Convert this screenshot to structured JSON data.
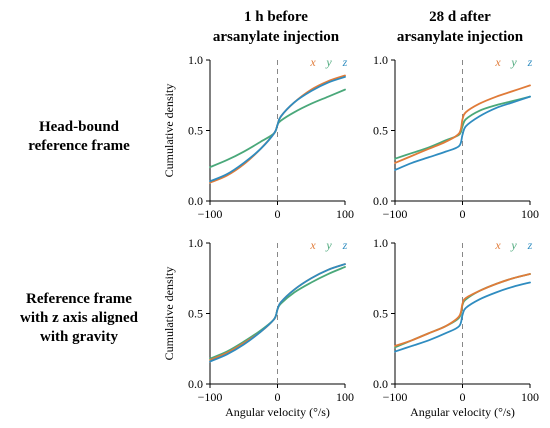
{
  "figure": {
    "col_titles": [
      [
        "1 h before",
        "arsanylate injection"
      ],
      [
        "28 d after",
        "arsanylate injection"
      ]
    ],
    "row_titles": [
      [
        "Head-bound",
        "reference frame"
      ],
      [
        "Reference frame",
        "with z axis aligned",
        "with gravity"
      ]
    ],
    "ylabel": "Cumulative density",
    "xlabel": "Angular velocity (°/s)",
    "legend": [
      "x",
      "y",
      "z"
    ],
    "colors": {
      "x": "#e07b39",
      "y": "#4aa87a",
      "z": "#2f8cc0",
      "zero_line": "#888888"
    }
  },
  "chart_data": [
    {
      "type": "line",
      "panel": "row 1, col 1",
      "xlim": [
        -100,
        100
      ],
      "ylim": [
        0,
        1
      ],
      "xticks": [
        "−100",
        "0",
        "100"
      ],
      "yticks": [
        "0.0",
        "0.5",
        "1.0"
      ],
      "x": [
        -100,
        -75,
        -50,
        -25,
        -5,
        0,
        5,
        25,
        50,
        75,
        100
      ],
      "series": [
        {
          "name": "x",
          "values": [
            0.13,
            0.18,
            0.26,
            0.37,
            0.48,
            0.54,
            0.6,
            0.7,
            0.79,
            0.85,
            0.89
          ]
        },
        {
          "name": "y",
          "values": [
            0.24,
            0.29,
            0.35,
            0.42,
            0.48,
            0.54,
            0.57,
            0.63,
            0.69,
            0.74,
            0.79
          ]
        },
        {
          "name": "z",
          "values": [
            0.14,
            0.19,
            0.27,
            0.37,
            0.48,
            0.54,
            0.6,
            0.7,
            0.78,
            0.84,
            0.88
          ]
        }
      ]
    },
    {
      "type": "line",
      "panel": "row 1, col 2",
      "xlim": [
        -100,
        100
      ],
      "ylim": [
        0,
        1
      ],
      "xticks": [
        "−100",
        "0",
        "100"
      ],
      "yticks": [
        "0.0",
        "0.5",
        "1.0"
      ],
      "x": [
        -100,
        -75,
        -50,
        -25,
        -5,
        0,
        5,
        25,
        50,
        75,
        100
      ],
      "series": [
        {
          "name": "x",
          "values": [
            0.27,
            0.32,
            0.37,
            0.42,
            0.48,
            0.58,
            0.63,
            0.69,
            0.74,
            0.78,
            0.82
          ]
        },
        {
          "name": "y",
          "values": [
            0.3,
            0.34,
            0.38,
            0.43,
            0.47,
            0.53,
            0.58,
            0.64,
            0.68,
            0.71,
            0.74
          ]
        },
        {
          "name": "z",
          "values": [
            0.22,
            0.27,
            0.31,
            0.35,
            0.39,
            0.47,
            0.53,
            0.6,
            0.66,
            0.7,
            0.74
          ]
        }
      ]
    },
    {
      "type": "line",
      "panel": "row 2, col 1",
      "xlim": [
        -100,
        100
      ],
      "ylim": [
        0,
        1
      ],
      "xticks": [
        "−100",
        "0",
        "100"
      ],
      "yticks": [
        "0.0",
        "0.5",
        "1.0"
      ],
      "x": [
        -100,
        -75,
        -50,
        -25,
        -5,
        0,
        5,
        25,
        50,
        75,
        100
      ],
      "series": [
        {
          "name": "x",
          "values": [
            0.17,
            0.22,
            0.29,
            0.37,
            0.46,
            0.53,
            0.58,
            0.67,
            0.75,
            0.81,
            0.85
          ]
        },
        {
          "name": "y",
          "values": [
            0.18,
            0.23,
            0.3,
            0.38,
            0.46,
            0.53,
            0.57,
            0.65,
            0.72,
            0.78,
            0.83
          ]
        },
        {
          "name": "z",
          "values": [
            0.16,
            0.21,
            0.28,
            0.37,
            0.46,
            0.53,
            0.58,
            0.67,
            0.75,
            0.81,
            0.85
          ]
        }
      ]
    },
    {
      "type": "line",
      "panel": "row 2, col 2",
      "xlim": [
        -100,
        100
      ],
      "ylim": [
        0,
        1
      ],
      "xticks": [
        "−100",
        "0",
        "100"
      ],
      "yticks": [
        "0.0",
        "0.5",
        "1.0"
      ],
      "x": [
        -100,
        -75,
        -50,
        -25,
        -5,
        0,
        5,
        25,
        50,
        75,
        100
      ],
      "series": [
        {
          "name": "x",
          "values": [
            0.27,
            0.31,
            0.36,
            0.41,
            0.48,
            0.57,
            0.61,
            0.66,
            0.71,
            0.75,
            0.78
          ]
        },
        {
          "name": "y",
          "values": [
            0.26,
            0.31,
            0.36,
            0.41,
            0.47,
            0.56,
            0.6,
            0.66,
            0.71,
            0.75,
            0.78
          ]
        },
        {
          "name": "z",
          "values": [
            0.23,
            0.27,
            0.31,
            0.36,
            0.41,
            0.49,
            0.54,
            0.6,
            0.65,
            0.69,
            0.72
          ]
        }
      ]
    }
  ]
}
